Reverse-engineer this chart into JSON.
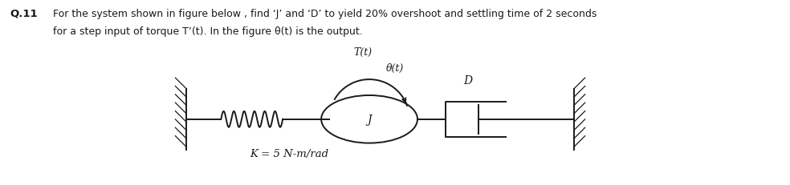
{
  "bg_color": "#ffffff",
  "text_color": "#1a1a1a",
  "question_label": "Q.11",
  "line1": "For the system shown in figure below , find ‘J’ and ‘D’ to yield 20% overshoot and settling time of 2 seconds",
  "line2": "for a step input of torque T’(t). In the figure θ(t) is the output.",
  "label_K": "K = 5 N-m/rad",
  "label_T": "T(t)",
  "label_theta": "θ(t)",
  "label_J": "J",
  "label_D": "D"
}
